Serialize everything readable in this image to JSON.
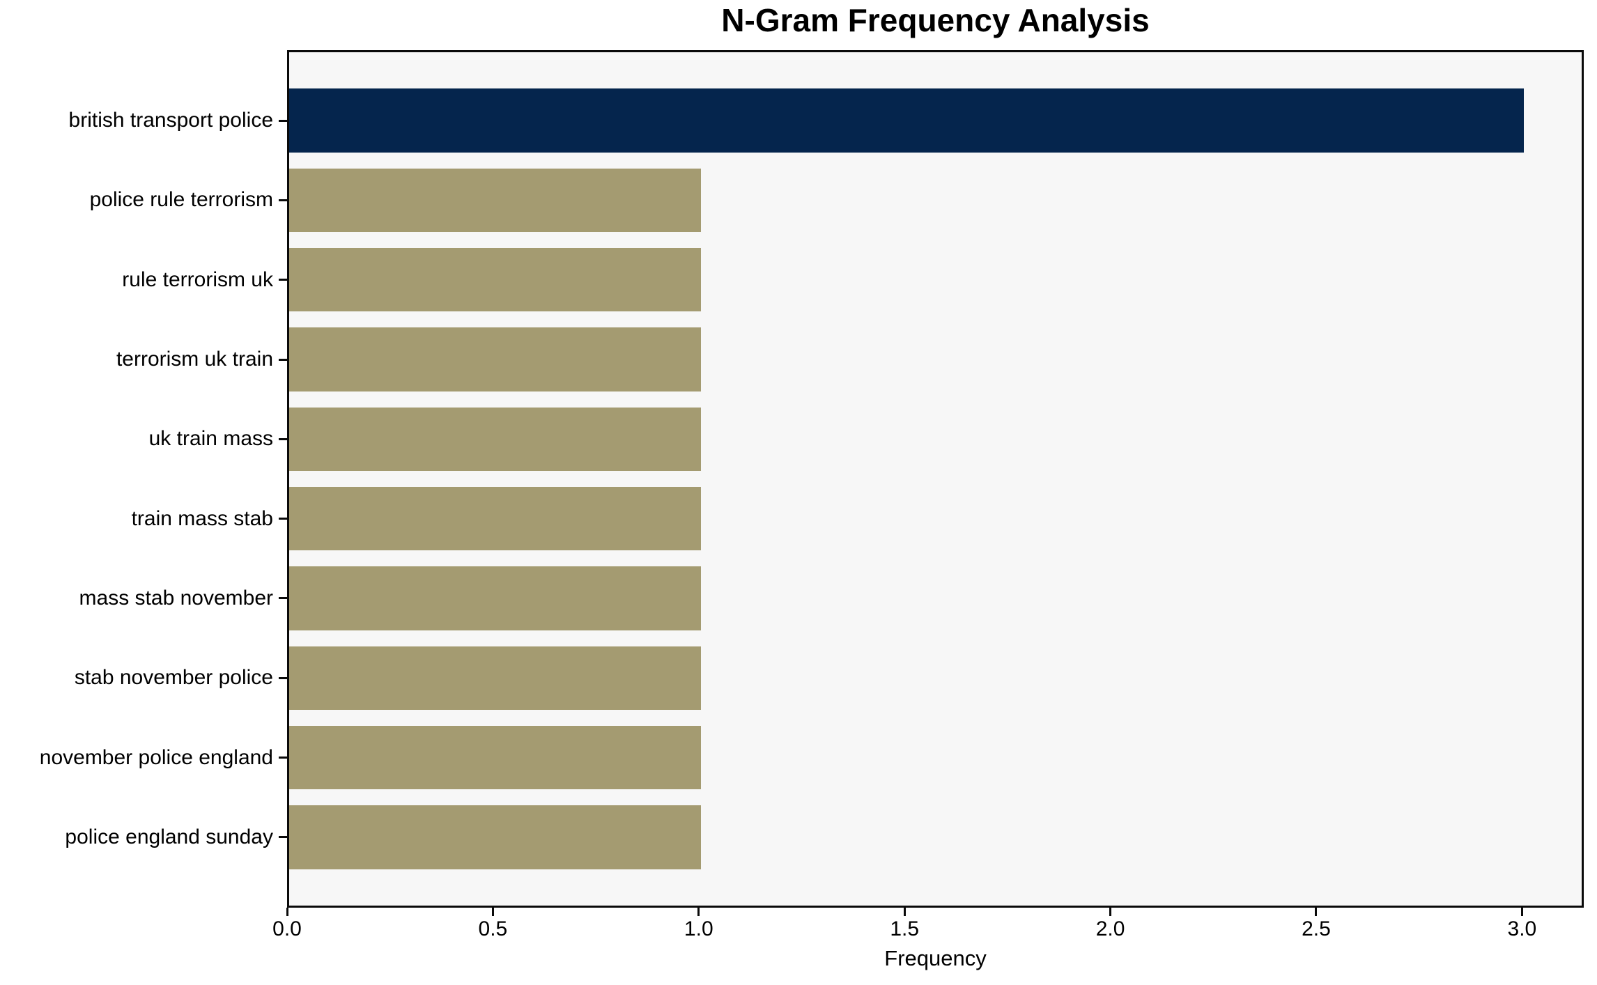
{
  "chart_data": {
    "type": "bar",
    "orientation": "horizontal",
    "title": "N-Gram Frequency Analysis",
    "xlabel": "Frequency",
    "ylabel": "",
    "categories": [
      "british transport police",
      "police rule terrorism",
      "rule terrorism uk",
      "terrorism uk train",
      "uk train mass",
      "train mass stab",
      "mass stab november",
      "stab november police",
      "november police england",
      "police england sunday"
    ],
    "values": [
      3,
      1,
      1,
      1,
      1,
      1,
      1,
      1,
      1,
      1
    ],
    "colors": [
      "#05254D",
      "#A49B71",
      "#A49B71",
      "#A49B71",
      "#A49B71",
      "#A49B71",
      "#A49B71",
      "#A49B71",
      "#A49B71",
      "#A49B71"
    ],
    "xlim": [
      0,
      3.15
    ],
    "xticks": [
      "0.0",
      "0.5",
      "1.0",
      "1.5",
      "2.0",
      "2.5",
      "3.0"
    ],
    "grid": false,
    "legend": "none",
    "plot_background": "#F7F7F7",
    "figure_background": "#FFFFFF"
  }
}
